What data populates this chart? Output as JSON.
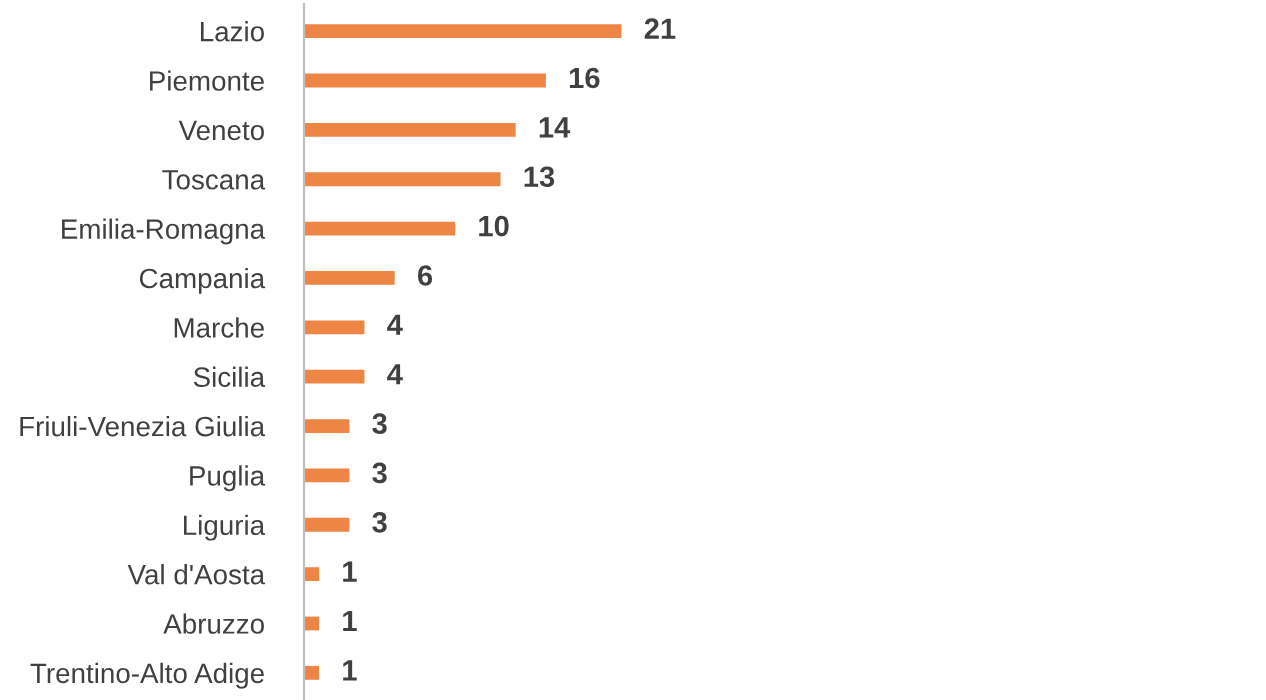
{
  "chart_data": {
    "type": "bar",
    "orientation": "horizontal",
    "categories": [
      "Lazio",
      "Piemonte",
      "Veneto",
      "Toscana",
      "Emilia-Romagna",
      "Campania",
      "Marche",
      "Sicilia",
      "Friuli-Venezia Giulia",
      "Puglia",
      "Liguria",
      "Val d'Aosta",
      "Abruzzo",
      "Trentino-Alto Adige"
    ],
    "values": [
      21,
      16,
      14,
      13,
      10,
      6,
      4,
      4,
      3,
      3,
      3,
      1,
      1,
      1
    ],
    "color": "#ed8544",
    "data_labels": true,
    "grid": false,
    "legend": false
  }
}
